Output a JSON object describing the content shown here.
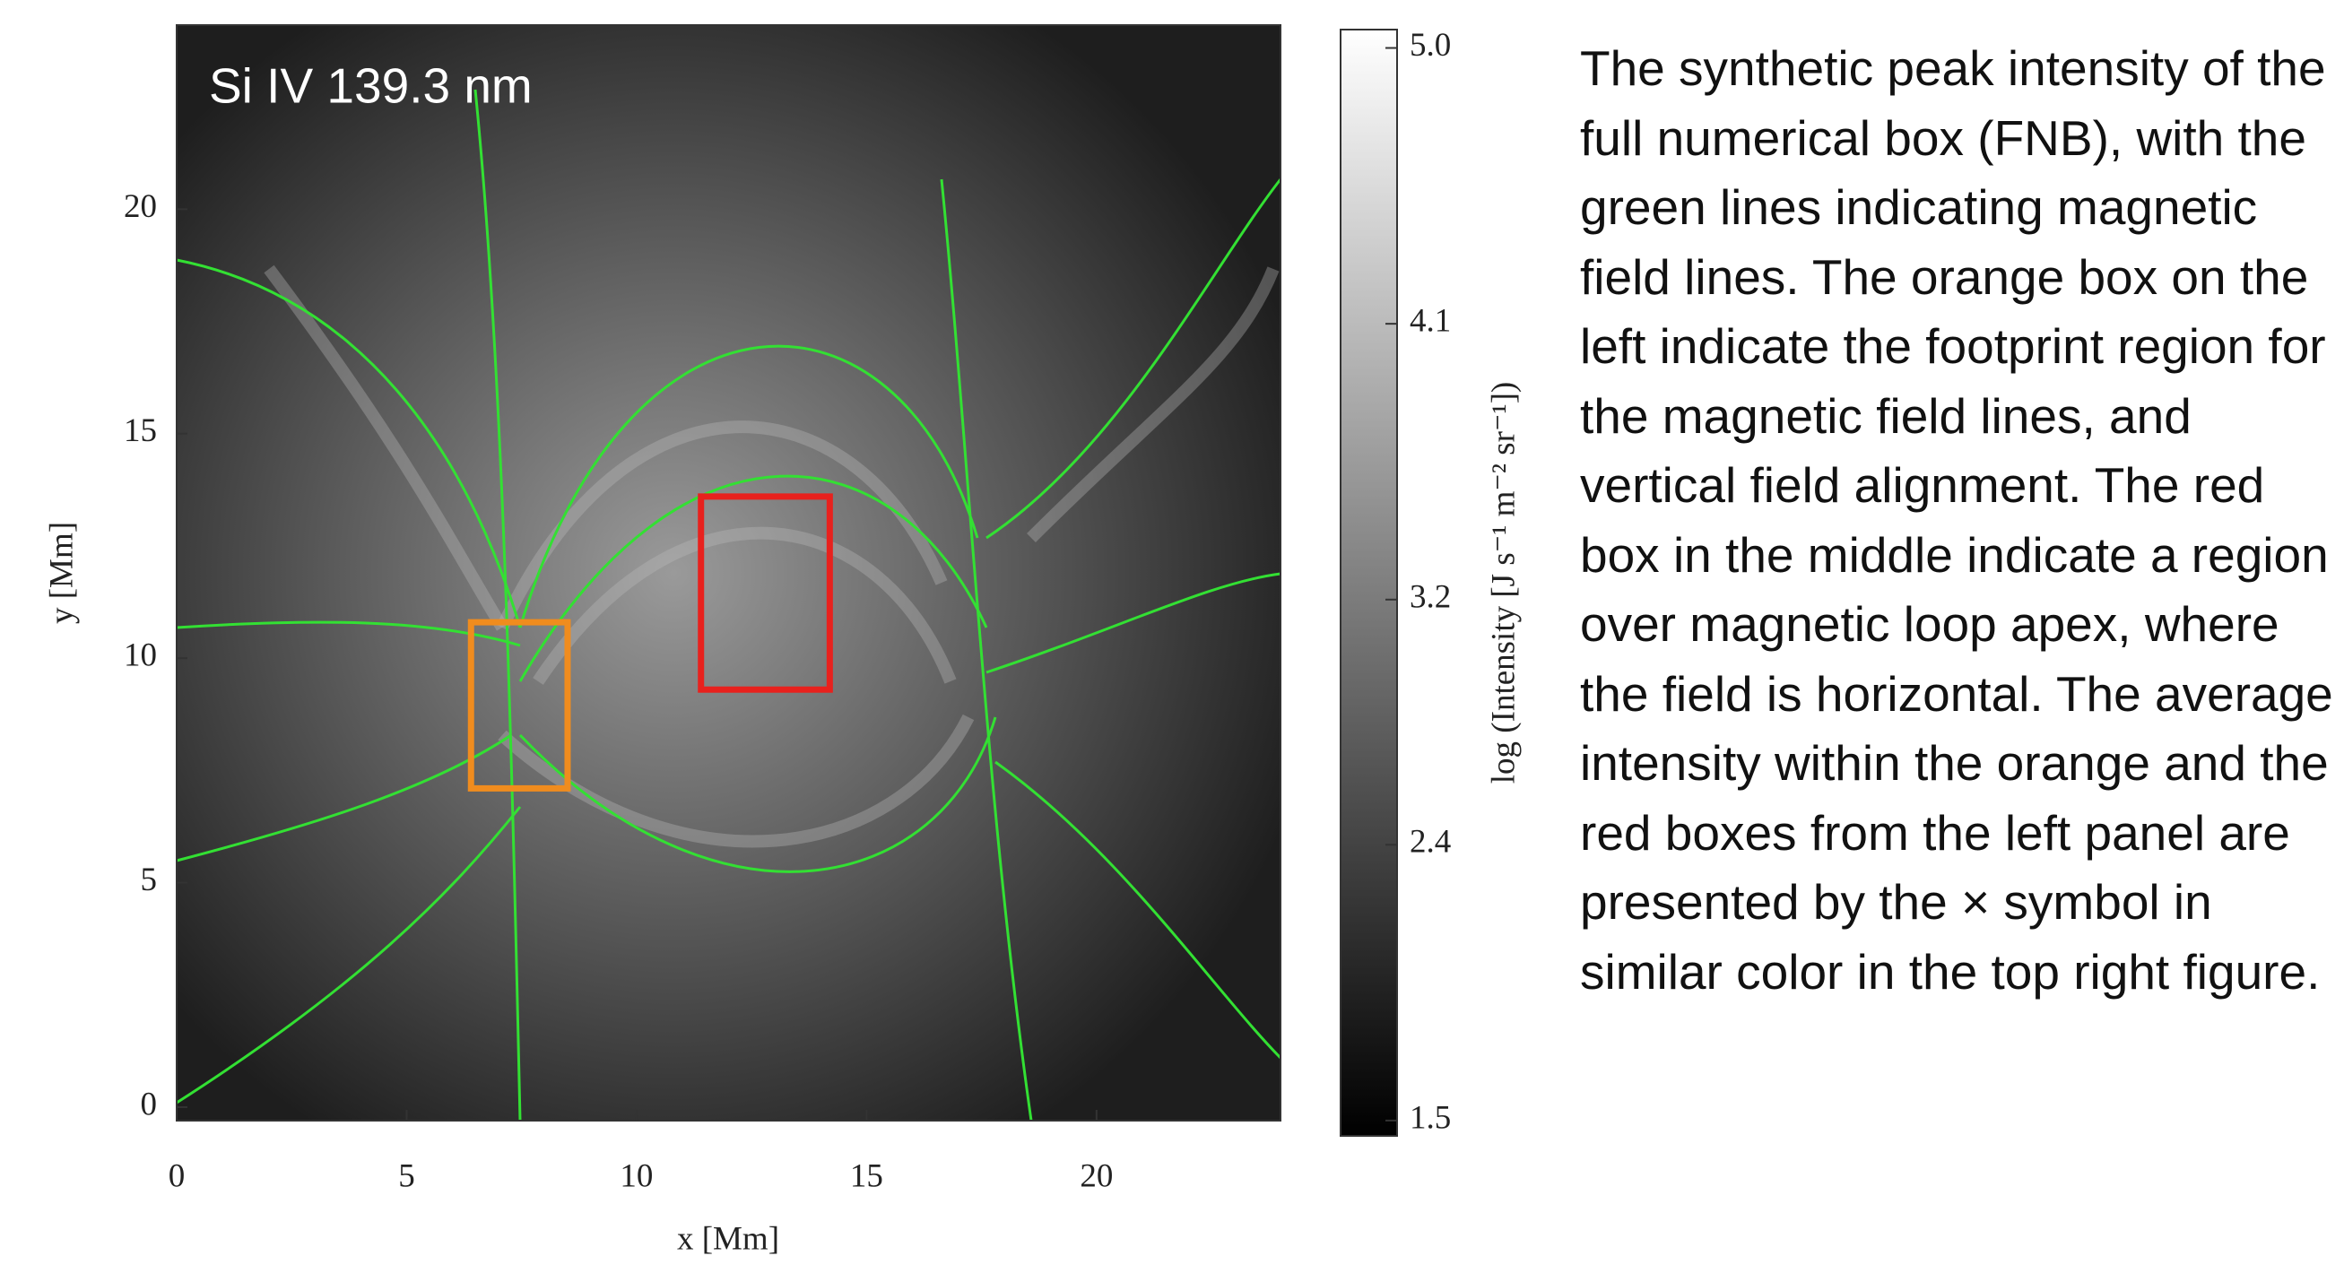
{
  "chart_data": {
    "type": "image",
    "title": "Si IV 139.3 nm",
    "xlabel": "x [Mm]",
    "ylabel": "y [Mm]",
    "xlim": [
      0,
      24
    ],
    "ylim": [
      -0.3,
      24.1
    ],
    "xticks": [
      0,
      5,
      10,
      15,
      20
    ],
    "yticks": [
      0,
      5,
      10,
      15,
      20
    ],
    "regions": [
      {
        "color": "#f08c1e",
        "x": [
          6.4,
          8.5
        ],
        "y": [
          7.1,
          10.8
        ]
      },
      {
        "color": "#e8211d",
        "x": [
          11.4,
          14.2
        ],
        "y": [
          9.3,
          13.6
        ]
      }
    ],
    "colorbar": {
      "label": "log (Intensity [J s⁻¹ m⁻² sr⁻¹])",
      "lim": [
        1.45,
        5.06
      ],
      "ticks": [
        1.5,
        2.4,
        3.2,
        4.1,
        {
          "value": 5,
          "label": "5.0"
        }
      ]
    }
  },
  "caption": "The synthetic peak intensity of the full numerical box (FNB), with the green lines indicating magnetic field lines. The orange box on the left indicate the footprint region for the magnetic field lines, and vertical field alignment. The red box in the middle indicate a region over magnetic loop apex, where the field is horizontal. The average intensity within the orange and the red boxes from the left panel are presented by the × symbol in similar color in the top right figure."
}
